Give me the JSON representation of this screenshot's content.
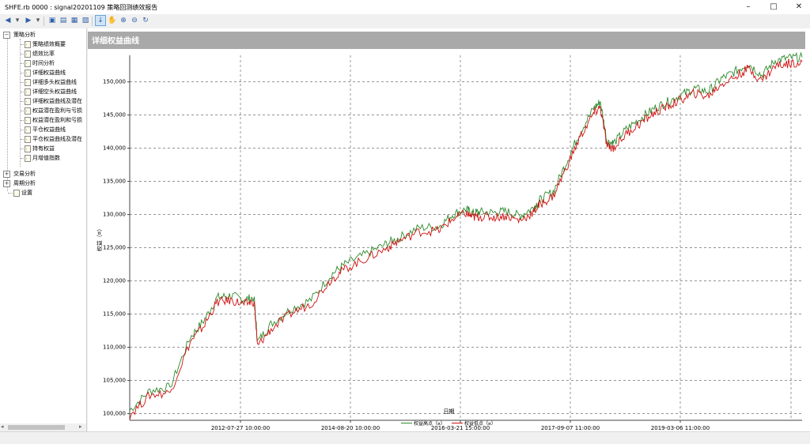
{
  "window": {
    "title": "SHFE.rb 0000 : signal20201109 策略回测绩效报告"
  },
  "tree": {
    "root": "策略分析",
    "items": [
      "策略绩效概要",
      "绩效比率",
      "时间分析",
      "详细权益曲线",
      "详细多头权益曲线",
      "详细空头权益曲线",
      "详细权益曲线及潜在",
      "权益潜在盈利与亏损",
      "权益潜在盈利和亏损",
      "平仓权益曲线",
      "平仓权益曲线及潜在",
      "持有权益",
      "月增值指数"
    ],
    "others": [
      "交易分析",
      "周期分析",
      "设置"
    ]
  },
  "panel": {
    "title": "详细权益曲线"
  },
  "chart_data": {
    "type": "line",
    "xlabel": "日期",
    "ylabel": "权益（¤）",
    "ylim": [
      99000,
      154000
    ],
    "yticks": [
      100000,
      105000,
      110000,
      115000,
      120000,
      125000,
      130000,
      135000,
      140000,
      145000,
      150000
    ],
    "ytick_labels": [
      "100,000",
      "105,000",
      "110,000",
      "115,000",
      "120,000",
      "125,000",
      "130,000",
      "135,000",
      "140,000",
      "145,000",
      "150,000"
    ],
    "xtick_labels": [
      "2012-07-27 10:00:00",
      "2014-08-20 10:00:00",
      "2016-03-21 15:00:00",
      "2017-09-07 11:00:00",
      "2019-03-06 11:00:00"
    ],
    "grid": true,
    "legend_position": "bottom",
    "series": [
      {
        "name": "权益高点（¤）",
        "color": "#2e8b2e",
        "x": [
          0,
          0.03,
          0.06,
          0.09,
          0.11,
          0.13,
          0.15,
          0.17,
          0.185,
          0.19,
          0.21,
          0.24,
          0.27,
          0.3,
          0.32,
          0.35,
          0.38,
          0.4,
          0.43,
          0.46,
          0.48,
          0.5,
          0.51,
          0.52,
          0.54,
          0.56,
          0.58,
          0.6,
          0.61,
          0.63,
          0.65,
          0.67,
          0.69,
          0.7,
          0.71,
          0.72,
          0.74,
          0.76,
          0.78,
          0.8,
          0.82,
          0.84,
          0.86,
          0.88,
          0.9,
          0.92,
          0.94,
          0.96,
          0.98,
          1.0
        ],
        "y": [
          100500,
          103500,
          104000,
          111500,
          114000,
          117500,
          117800,
          117200,
          117500,
          110800,
          113500,
          115800,
          117200,
          121000,
          122500,
          124000,
          125500,
          126500,
          128000,
          128200,
          130000,
          130800,
          130200,
          130400,
          130300,
          130500,
          129800,
          131000,
          132200,
          133500,
          138000,
          142500,
          146000,
          147000,
          141000,
          140800,
          143000,
          144500,
          146000,
          147000,
          148000,
          149000,
          148500,
          150500,
          151500,
          152800,
          151000,
          153200,
          153600,
          153700
        ]
      },
      {
        "name": "权益低点（¤）",
        "color": "#d01010",
        "x": [
          0,
          0.03,
          0.06,
          0.09,
          0.11,
          0.13,
          0.15,
          0.17,
          0.185,
          0.19,
          0.21,
          0.24,
          0.27,
          0.3,
          0.32,
          0.35,
          0.38,
          0.4,
          0.43,
          0.46,
          0.48,
          0.5,
          0.51,
          0.52,
          0.54,
          0.56,
          0.58,
          0.6,
          0.61,
          0.63,
          0.65,
          0.67,
          0.69,
          0.7,
          0.71,
          0.72,
          0.74,
          0.76,
          0.78,
          0.8,
          0.82,
          0.84,
          0.86,
          0.88,
          0.9,
          0.92,
          0.94,
          0.96,
          0.98,
          1.0
        ],
        "y": [
          99800,
          102800,
          103200,
          110800,
          113200,
          116800,
          117100,
          116500,
          116900,
          110200,
          112700,
          115100,
          116600,
          120300,
          121800,
          123300,
          124800,
          126000,
          127400,
          127600,
          129300,
          130200,
          129600,
          129700,
          129600,
          129800,
          129100,
          130300,
          131500,
          132800,
          137200,
          141700,
          145200,
          146200,
          140200,
          140100,
          142300,
          143800,
          145300,
          146300,
          147300,
          148300,
          147800,
          149700,
          150700,
          152000,
          150200,
          152400,
          152800,
          153000
        ]
      }
    ]
  }
}
